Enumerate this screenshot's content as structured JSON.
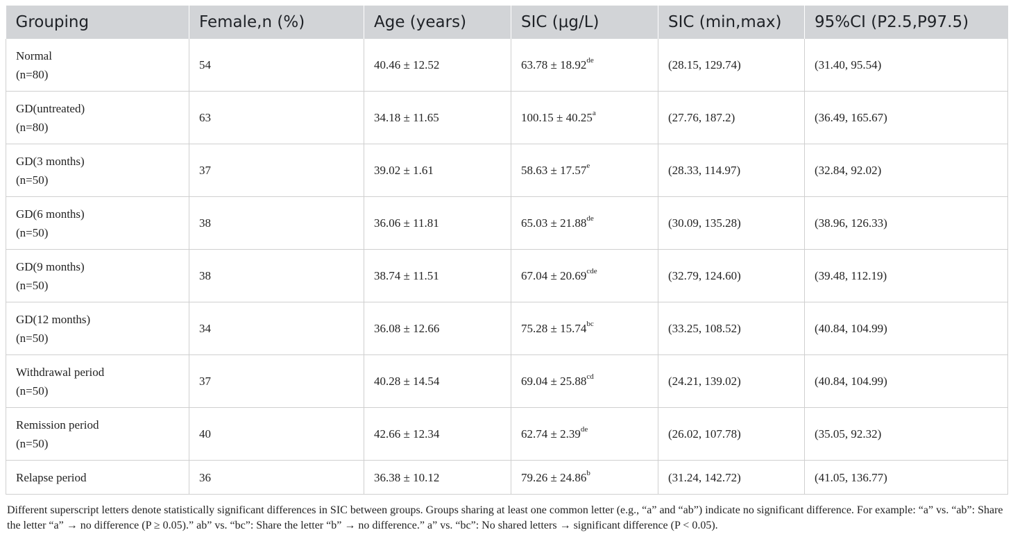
{
  "table": {
    "headers": [
      "Grouping",
      "Female,n (%)",
      "Age (years)",
      "SIC (μg/L)",
      "SIC (min,max)",
      "95%CI (P2.5,P97.5)"
    ],
    "rows": [
      {
        "group": "Normal",
        "n": "(n=80)",
        "female": "54",
        "age": "40.46 ± 12.52",
        "sic": "63.78 ± 18.92",
        "sup": "de",
        "range": "(28.15, 129.74)",
        "ci": "(31.40, 95.54)"
      },
      {
        "group": "GD(untreated)",
        "n": "(n=80)",
        "female": "63",
        "age": "34.18 ± 11.65",
        "sic": "100.15 ± 40.25",
        "sup": "a",
        "range": "(27.76, 187.2)",
        "ci": "(36.49, 165.67)"
      },
      {
        "group": "GD(3 months)",
        "n": "(n=50)",
        "female": "37",
        "age": "39.02 ± 1.61",
        "sic": "58.63 ± 17.57",
        "sup": "e",
        "range": "(28.33, 114.97)",
        "ci": "(32.84, 92.02)"
      },
      {
        "group": "GD(6 months)",
        "n": "(n=50)",
        "female": "38",
        "age": "36.06 ± 11.81",
        "sic": "65.03 ± 21.88",
        "sup": "de",
        "range": "(30.09, 135.28)",
        "ci": "(38.96, 126.33)"
      },
      {
        "group": "GD(9 months)",
        "n": "(n=50)",
        "female": "38",
        "age": "38.74 ± 11.51",
        "sic": "67.04 ± 20.69",
        "sup": "cde",
        "range": "(32.79, 124.60)",
        "ci": "(39.48, 112.19)"
      },
      {
        "group": "GD(12 months)",
        "n": "(n=50)",
        "female": "34",
        "age": "36.08 ± 12.66",
        "sic": "75.28 ± 15.74",
        "sup": "bc",
        "range": "(33.25, 108.52)",
        "ci": "(40.84, 104.99)"
      },
      {
        "group": "Withdrawal period",
        "n": "(n=50)",
        "female": "37",
        "age": "40.28 ± 14.54",
        "sic": "69.04 ± 25.88",
        "sup": "cd",
        "range": "(24.21, 139.02)",
        "ci": "(40.84, 104.99)"
      },
      {
        "group": "Remission period",
        "n": "(n=50)",
        "female": "40",
        "age": "42.66 ± 12.34",
        "sic": "62.74 ± 2.39",
        "sup": "de",
        "range": "(26.02, 107.78)",
        "ci": "(35.05, 92.32)"
      },
      {
        "group": "Relapse period",
        "n": "",
        "female": "36",
        "age": "36.38 ± 10.12",
        "sic": "79.26 ± 24.86",
        "sup": "b",
        "range": "(31.24, 142.72)",
        "ci": "(41.05, 136.77)"
      }
    ]
  },
  "footnote": "Different superscript letters denote statistically significant differences in SIC between groups. Groups sharing at least one common letter (e.g., “a” and “ab”) indicate no significant difference. For example: “a” vs. “ab”: Share the letter “a” → no difference (P ≥ 0.05).” ab” vs. “bc”: Share the letter “b” → no difference.” a” vs. “bc”: No shared letters → significant difference (P < 0.05)."
}
